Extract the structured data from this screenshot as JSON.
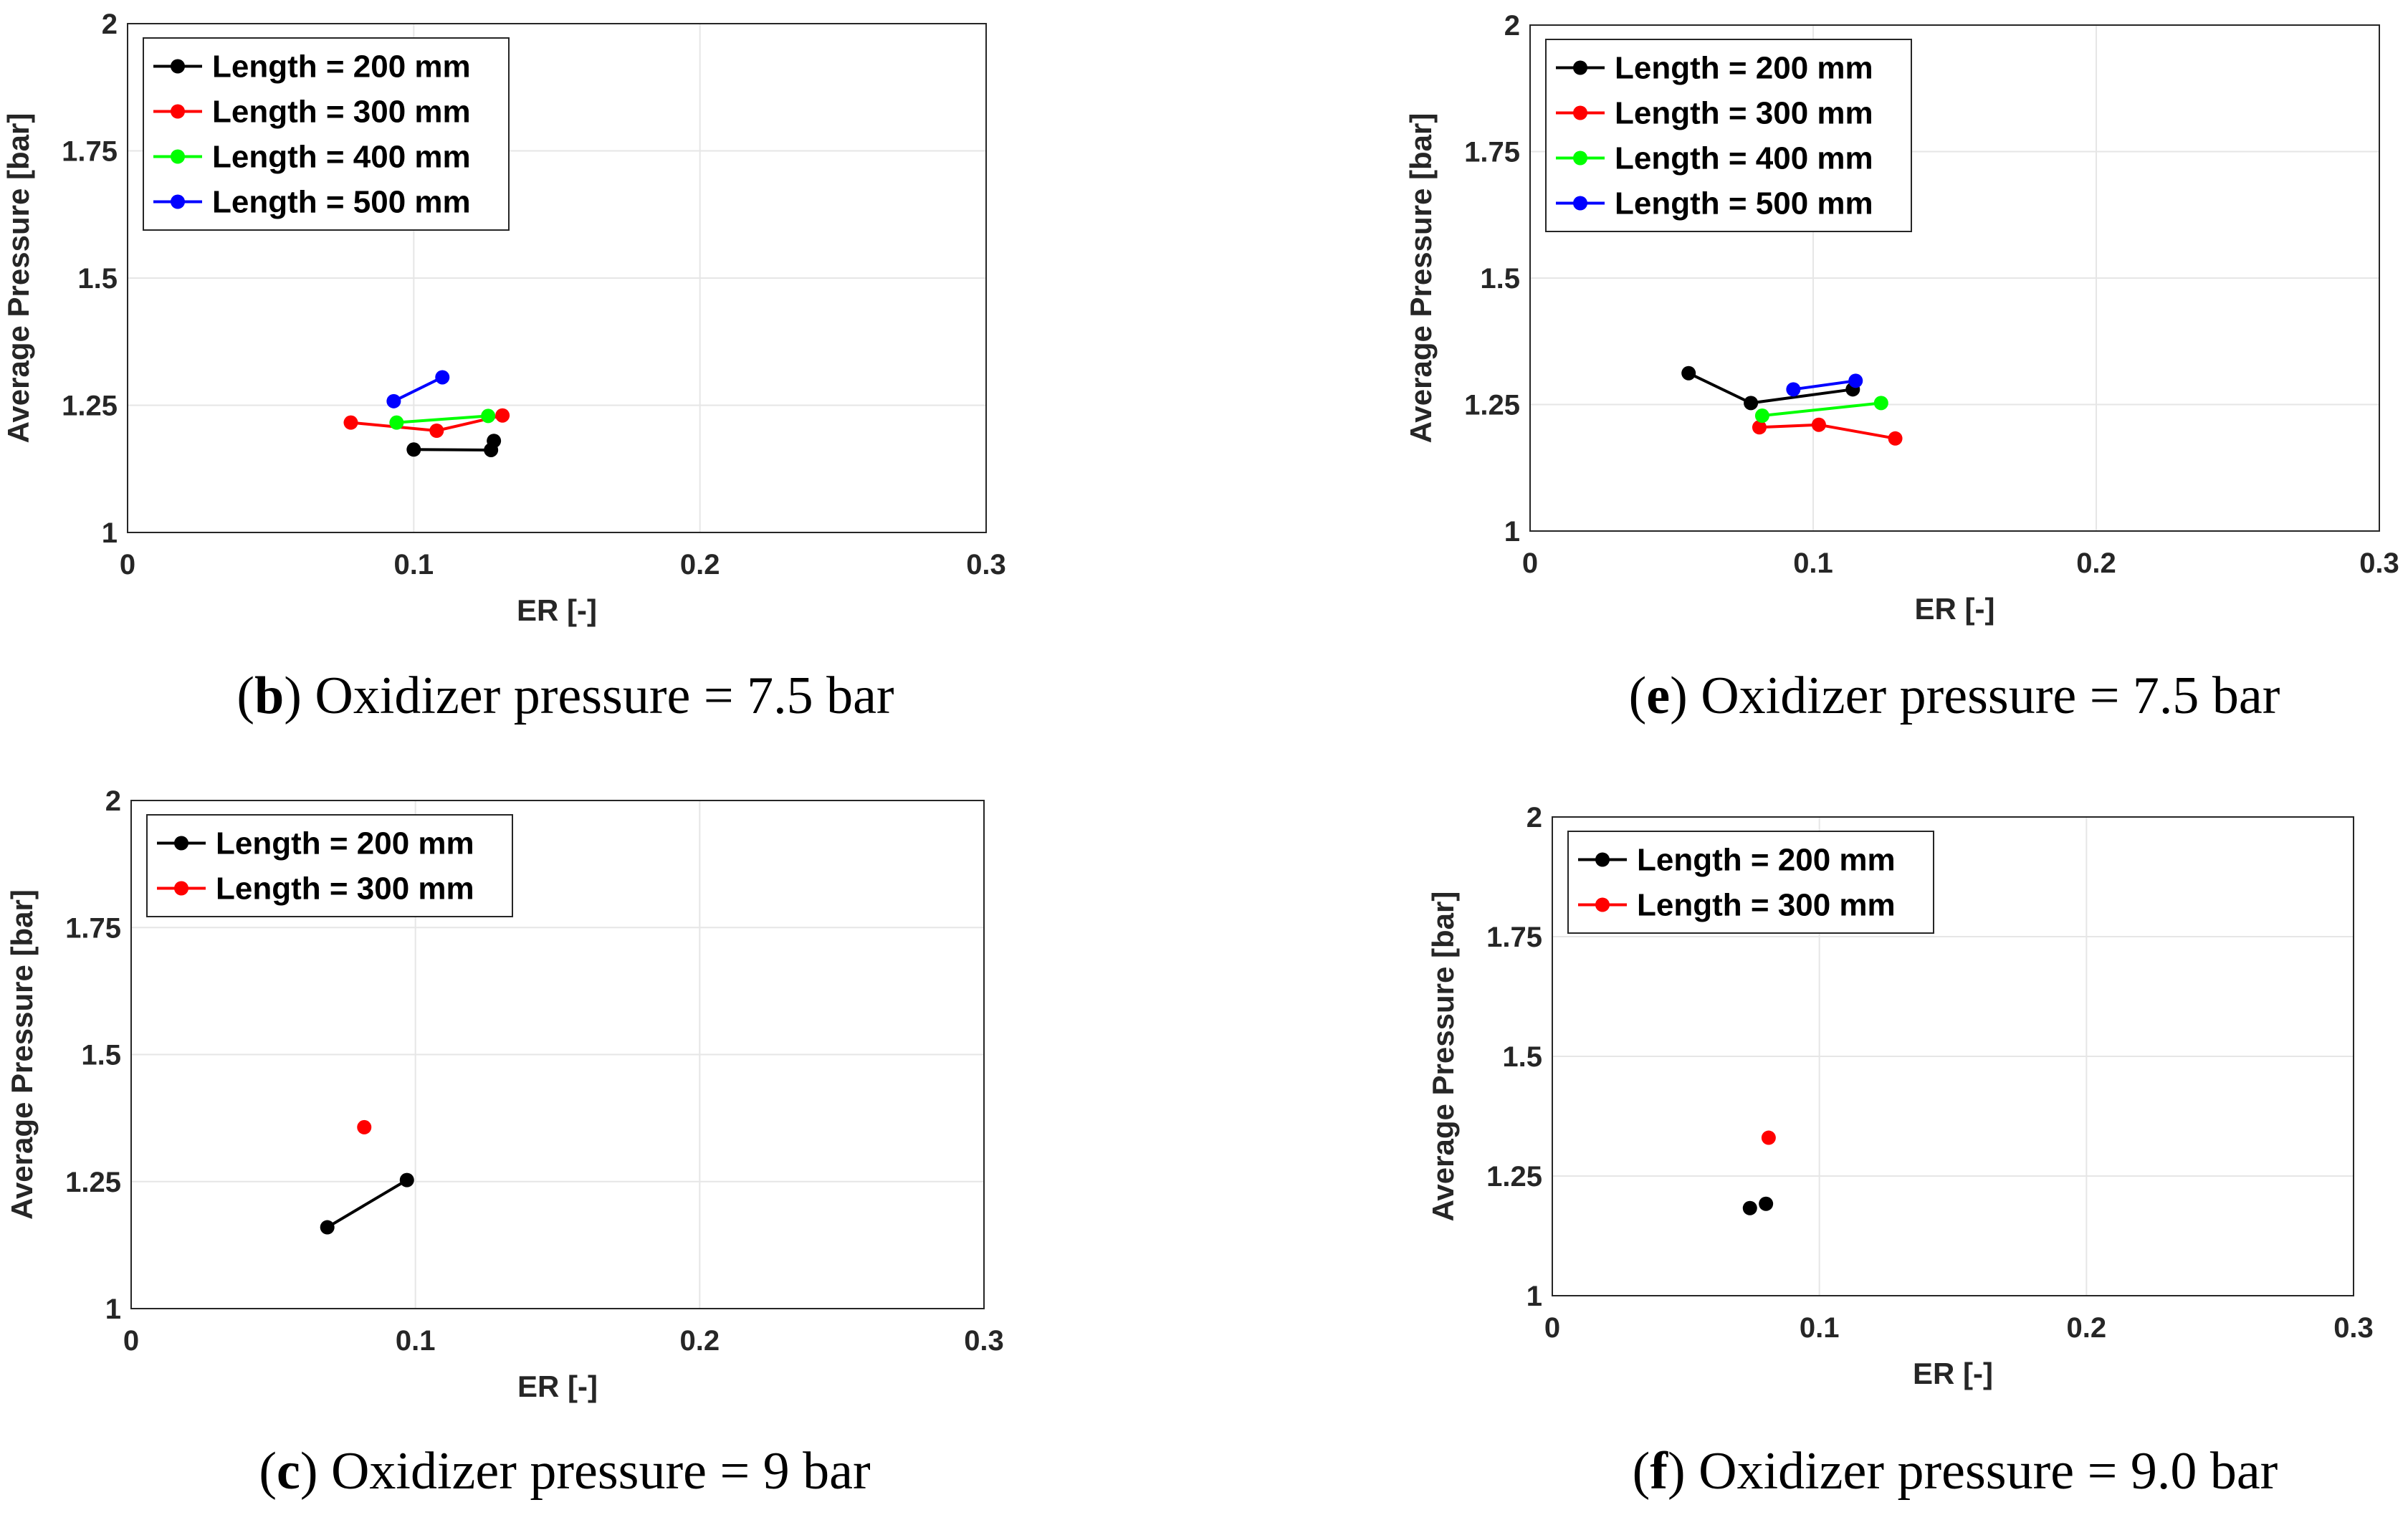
{
  "chart_data": [
    {
      "type": "line",
      "caption_letter": "b",
      "caption_text": "Oxidizer pressure = 7.5 bar",
      "xlabel": "ER [-]",
      "ylabel": "Average Pressure [bar]",
      "xlim": [
        0,
        0.3
      ],
      "ylim": [
        1,
        2
      ],
      "xticks": [
        0,
        0.1,
        0.2,
        0.3
      ],
      "xtick_labels": [
        "0",
        "0.1",
        "0.2",
        "0.3"
      ],
      "yticks": [
        1,
        1.25,
        1.5,
        1.75,
        2
      ],
      "ytick_labels": [
        "1",
        "1.25",
        "1.5",
        "1.75",
        "2"
      ],
      "grid": true,
      "legend_position": "top-left",
      "series": [
        {
          "name": "Length = 200 mm",
          "color": "#000000",
          "x": [
            0.1,
            0.127,
            0.128
          ],
          "y": [
            1.163,
            1.162,
            1.18
          ]
        },
        {
          "name": "Length = 300 mm",
          "color": "#ff0000",
          "x": [
            0.078,
            0.108,
            0.131
          ],
          "y": [
            1.216,
            1.2,
            1.23
          ]
        },
        {
          "name": "Length = 400 mm",
          "color": "#00ff00",
          "x": [
            0.094,
            0.126
          ],
          "y": [
            1.216,
            1.229
          ]
        },
        {
          "name": "Length = 500 mm",
          "color": "#0000ff",
          "x": [
            0.093,
            0.11
          ],
          "y": [
            1.258,
            1.305
          ]
        }
      ]
    },
    {
      "type": "line",
      "caption_letter": "e",
      "caption_text": "Oxidizer pressure = 7.5 bar",
      "xlabel": "ER [-]",
      "ylabel": "Average Pressure [bar]",
      "xlim": [
        0,
        0.3
      ],
      "ylim": [
        1,
        2
      ],
      "xticks": [
        0,
        0.1,
        0.2,
        0.3
      ],
      "xtick_labels": [
        "0",
        "0.1",
        "0.2",
        "0.3"
      ],
      "yticks": [
        1,
        1.25,
        1.5,
        1.75,
        2
      ],
      "ytick_labels": [
        "1",
        "1.25",
        "1.5",
        "1.75",
        "2"
      ],
      "grid": true,
      "legend_position": "top-left",
      "series": [
        {
          "name": "Length = 200 mm",
          "color": "#000000",
          "x": [
            0.056,
            0.078,
            0.114
          ],
          "y": [
            1.312,
            1.253,
            1.28
          ]
        },
        {
          "name": "Length = 300 mm",
          "color": "#ff0000",
          "x": [
            0.081,
            0.102,
            0.129
          ],
          "y": [
            1.205,
            1.21,
            1.183
          ]
        },
        {
          "name": "Length = 400 mm",
          "color": "#00ff00",
          "x": [
            0.082,
            0.124
          ],
          "y": [
            1.228,
            1.253
          ]
        },
        {
          "name": "Length = 500 mm",
          "color": "#0000ff",
          "x": [
            0.093,
            0.115
          ],
          "y": [
            1.28,
            1.297
          ]
        }
      ]
    },
    {
      "type": "line",
      "caption_letter": "c",
      "caption_text": "Oxidizer pressure = 9 bar",
      "xlabel": "ER [-]",
      "ylabel": "Average Pressure [bar]",
      "xlim": [
        0,
        0.3
      ],
      "ylim": [
        1,
        2
      ],
      "xticks": [
        0,
        0.1,
        0.2,
        0.3
      ],
      "xtick_labels": [
        "0",
        "0.1",
        "0.2",
        "0.3"
      ],
      "yticks": [
        1,
        1.25,
        1.5,
        1.75,
        2
      ],
      "ytick_labels": [
        "1",
        "1.25",
        "1.5",
        "1.75",
        "2"
      ],
      "grid": true,
      "legend_position": "top-left",
      "series": [
        {
          "name": "Length = 200 mm",
          "color": "#000000",
          "x": [
            0.069,
            0.097
          ],
          "y": [
            1.16,
            1.253
          ]
        },
        {
          "name": "Length = 300 mm",
          "color": "#ff0000",
          "x": [
            0.082
          ],
          "y": [
            1.357
          ]
        }
      ]
    },
    {
      "type": "line",
      "caption_letter": "f",
      "caption_text": "Oxidizer pressure = 9.0 bar",
      "xlabel": "ER [-]",
      "ylabel": "Average Pressure [bar]",
      "xlim": [
        0,
        0.3
      ],
      "ylim": [
        1,
        2
      ],
      "xticks": [
        0,
        0.1,
        0.2,
        0.3
      ],
      "xtick_labels": [
        "0",
        "0.1",
        "0.2",
        "0.3"
      ],
      "yticks": [
        1,
        1.25,
        1.5,
        1.75,
        2
      ],
      "ytick_labels": [
        "1",
        "1.25",
        "1.5",
        "1.75",
        "2"
      ],
      "grid": true,
      "legend_position": "top-left",
      "series": [
        {
          "name": "Length = 200 mm",
          "color": "#000000",
          "x": [
            0.074,
            0.08
          ],
          "y": [
            1.183,
            1.192
          ],
          "connected": false
        },
        {
          "name": "Length = 300 mm",
          "color": "#ff0000",
          "x": [
            0.081
          ],
          "y": [
            1.33
          ]
        }
      ]
    }
  ]
}
